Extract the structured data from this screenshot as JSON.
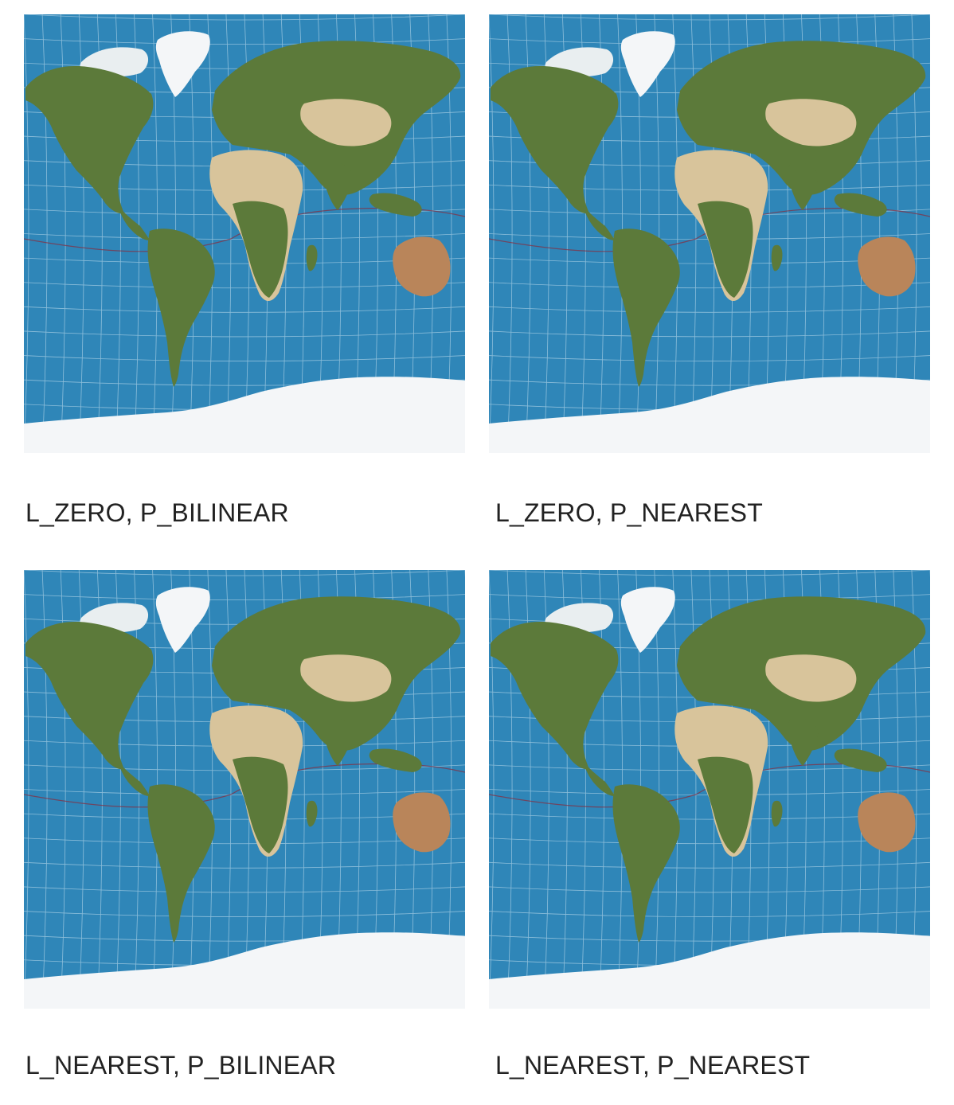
{
  "panels": [
    {
      "caption": "L_ZERO, P_BILINEAR",
      "resample": "bilinear"
    },
    {
      "caption": "L_ZERO, P_NEAREST",
      "resample": "nearest"
    },
    {
      "caption": "L_NEAREST, P_BILINEAR",
      "resample": "bilinear"
    },
    {
      "caption": "L_NEAREST, P_NEAREST",
      "resample": "nearest"
    }
  ],
  "colors": {
    "ocean": "#2f86b8",
    "land_green": "#5c7a3a",
    "land_desert": "#d8c49b",
    "ice": "#f4f6f8",
    "australia": "#b9855a",
    "graticule": "#d9ecf7",
    "tropic_line": "#8a2a3a"
  }
}
